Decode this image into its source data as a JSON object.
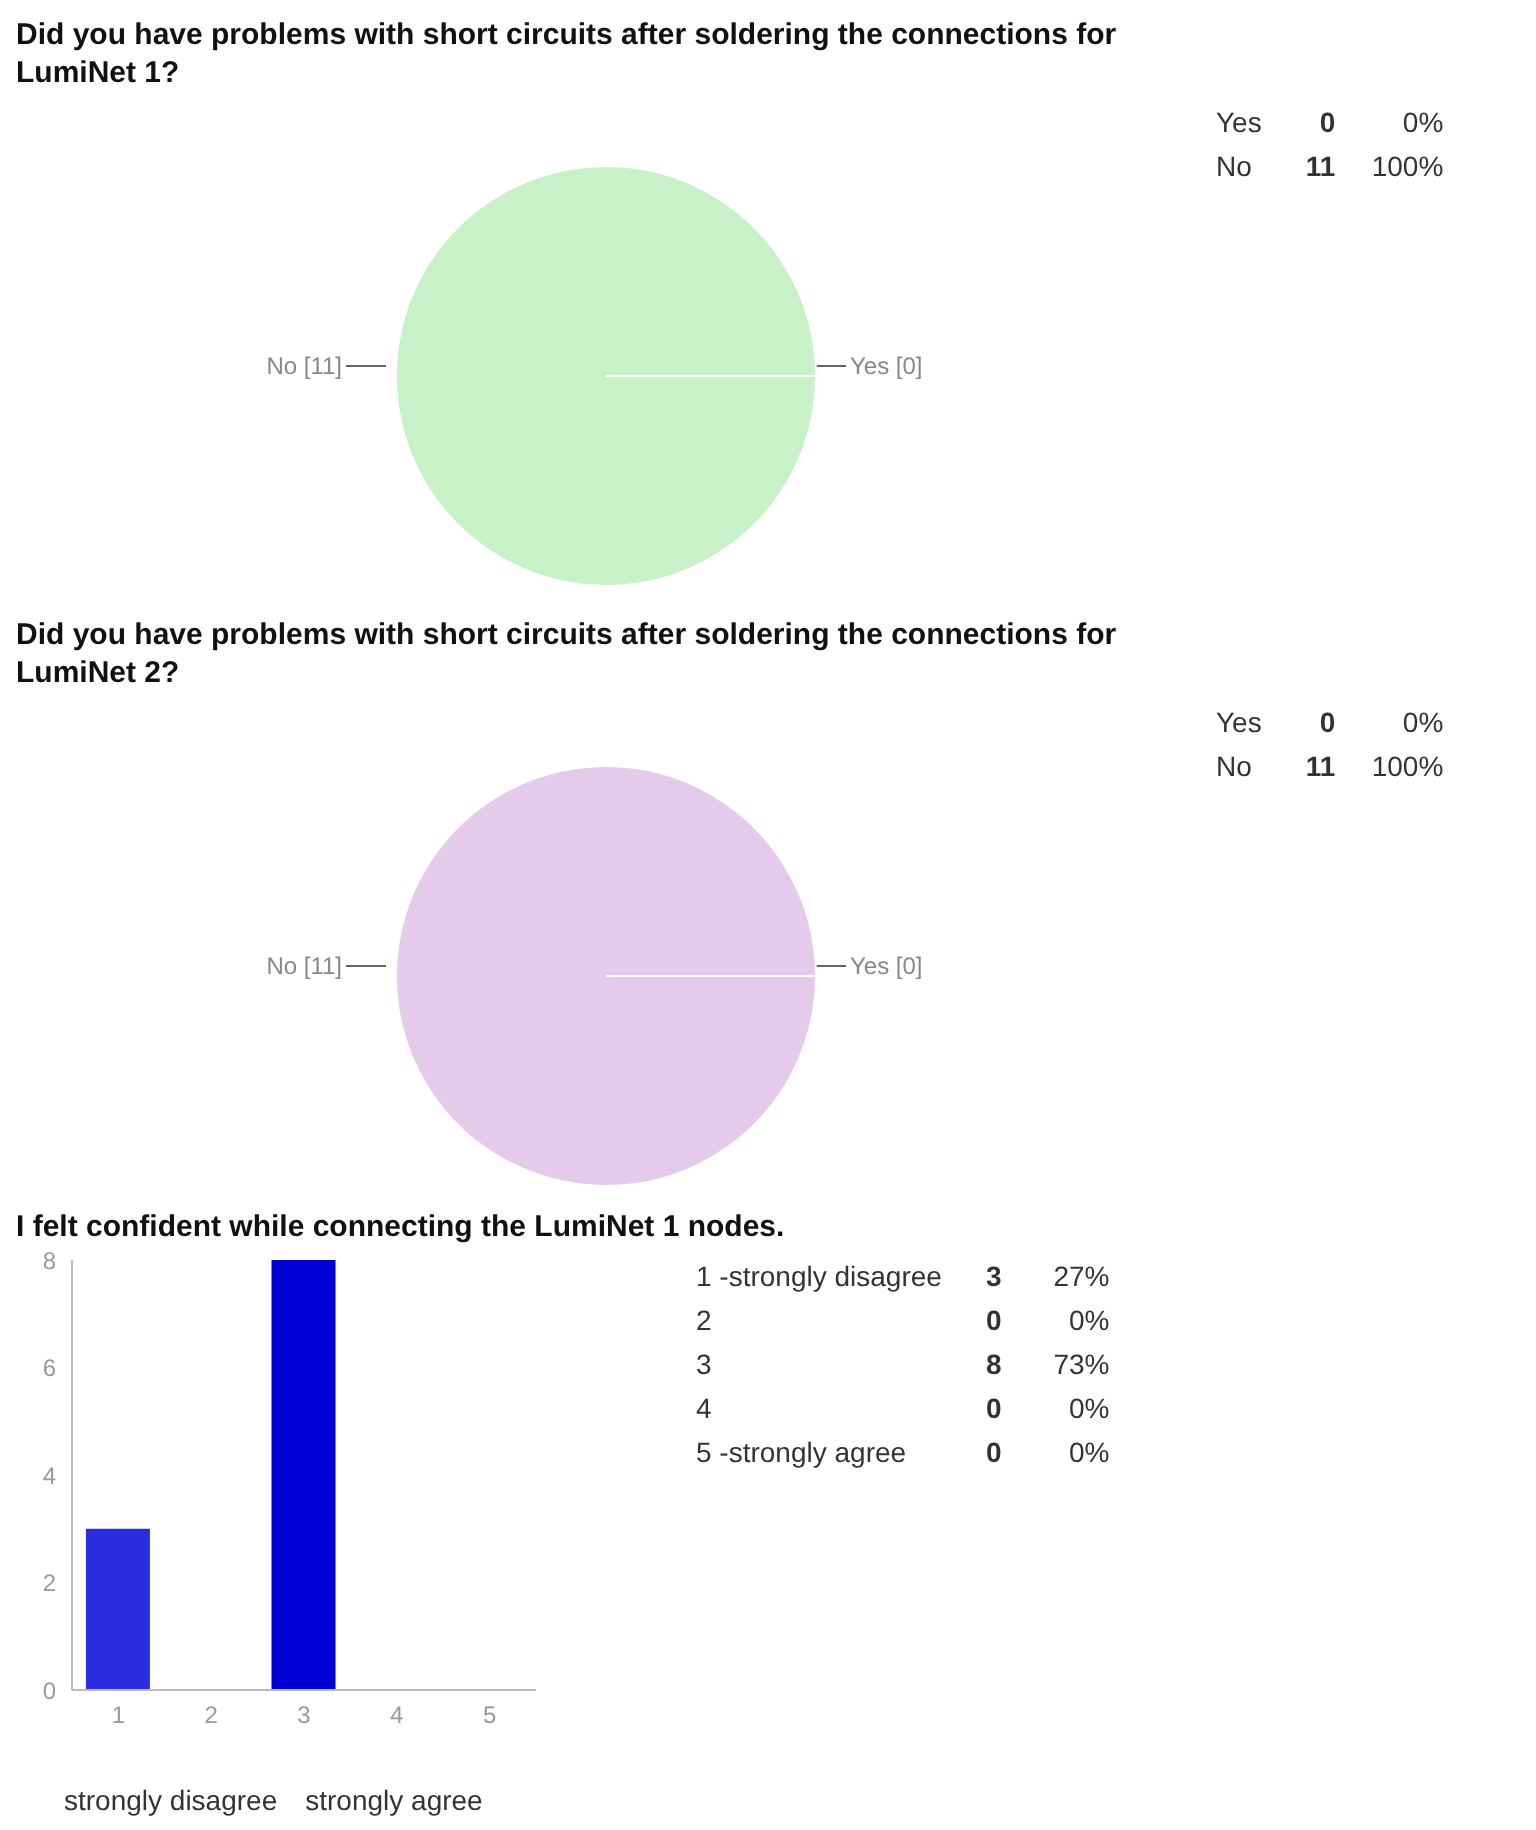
{
  "chart_data": [
    {
      "type": "pie",
      "title": "Did you have problems with short circuits after soldering the connections for LumiNet 1?",
      "categories": [
        "Yes",
        "No"
      ],
      "values": [
        0,
        11
      ],
      "colors": [
        "#f4b6b6",
        "#c8f1c8"
      ],
      "value_labels": [
        "[0]",
        "[11]"
      ]
    },
    {
      "type": "other",
      "annotations": [
        "Yes",
        "0",
        "0%",
        "No",
        "11",
        "100%"
      ]
    },
    {
      "type": "pie",
      "title": "Did you have problems with short circuits after soldering the connections for LumiNet 2?",
      "categories": [
        "Yes",
        "No"
      ],
      "values": [
        0,
        11
      ],
      "colors": [
        "#f4b6b6",
        "#e6caec"
      ],
      "value_labels": [
        "[0]",
        "[11]"
      ]
    },
    {
      "type": "other",
      "annotations": [
        "Yes",
        "0",
        "0%",
        "No",
        "11",
        "100%"
      ]
    },
    {
      "type": "bar",
      "title": "I felt confident while connecting the LumiNet 1 nodes.",
      "categories": [
        "1",
        "2",
        "3",
        "4",
        "5"
      ],
      "values": [
        3,
        0,
        8,
        0,
        0
      ],
      "colors": [
        "#2a2ee0",
        "#0000d6",
        "#0000d6",
        "#0000d6",
        "#0000d6"
      ],
      "ylim": [
        0,
        8
      ],
      "yticks": [
        0,
        2,
        4,
        6,
        8
      ],
      "annotations": [
        "strongly disagree",
        "strongly agree"
      ]
    },
    {
      "type": "other",
      "annotations": [
        "1 -strongly disagree",
        "3",
        "27%",
        "2",
        "0",
        "0%",
        "3",
        "8",
        "73%",
        "4",
        "0",
        "0%",
        "5 -strongly agree",
        "0",
        "0%"
      ]
    }
  ]
}
